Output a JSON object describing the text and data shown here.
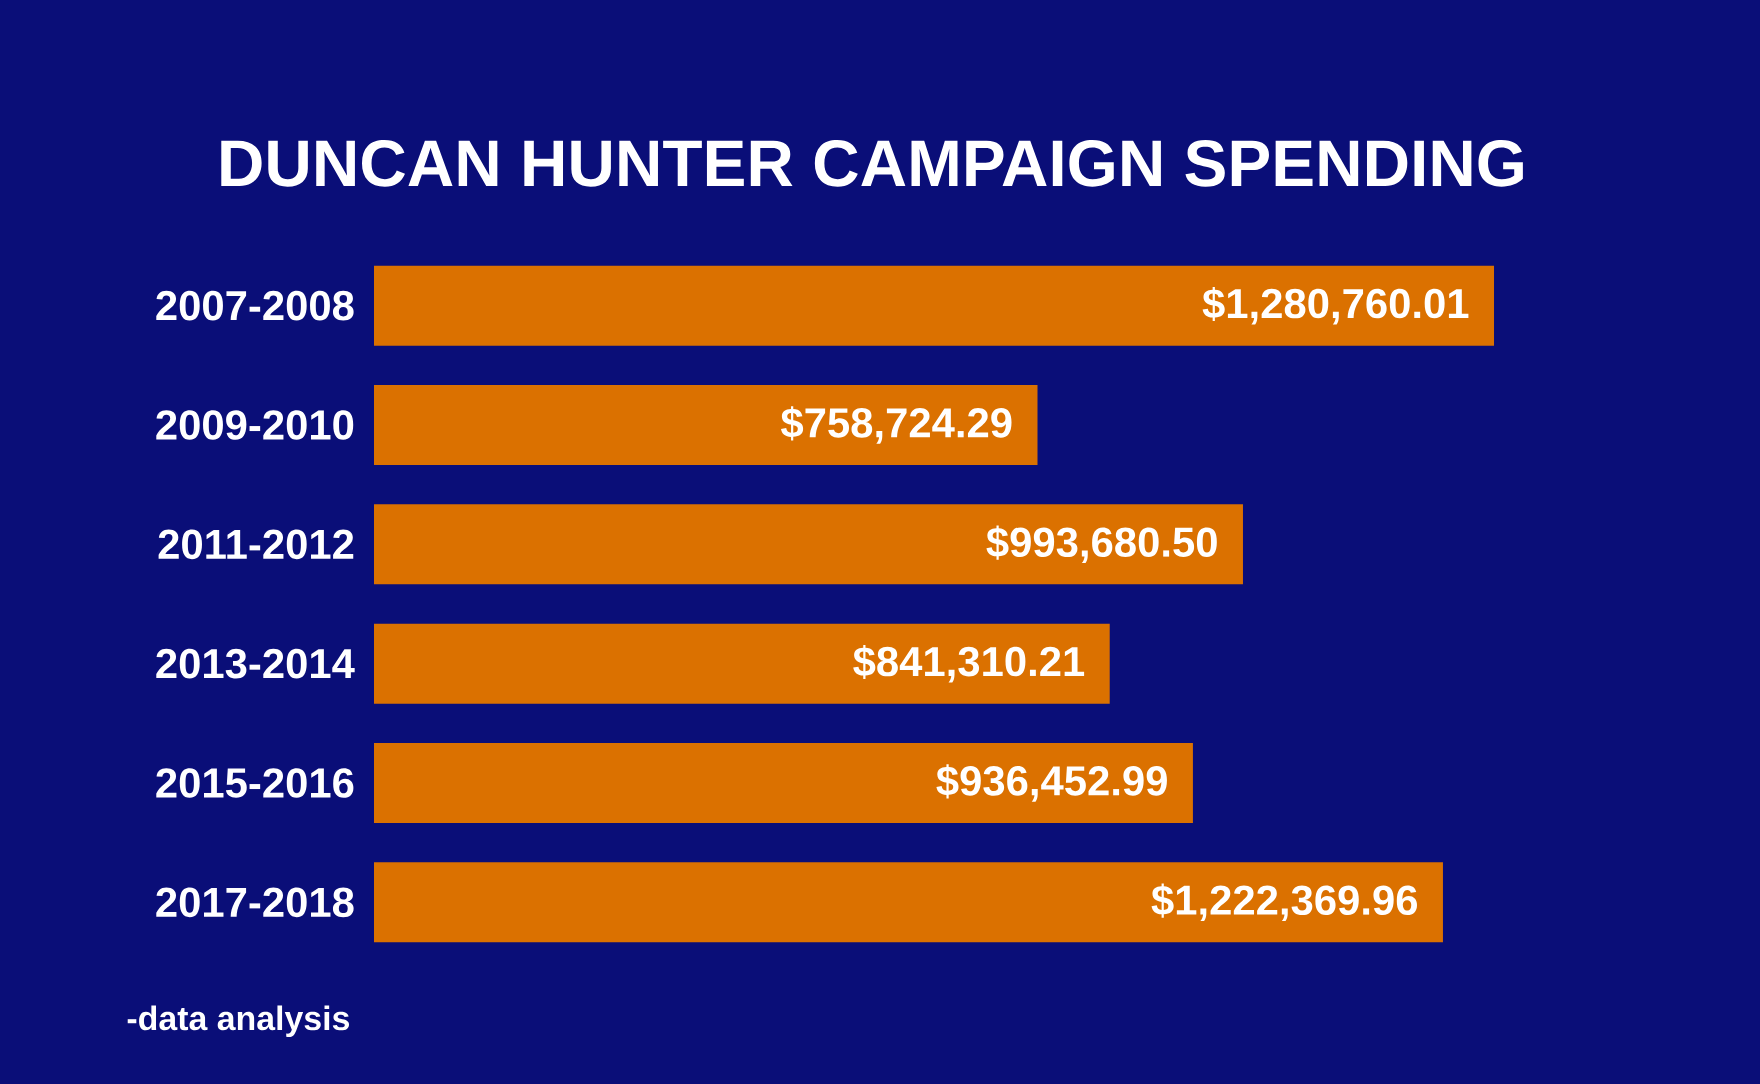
{
  "chart_data": {
    "type": "bar",
    "orientation": "horizontal",
    "title": "DUNCAN HUNTER CAMPAIGN SPENDING",
    "categories": [
      "2007-2008",
      "2009-2010",
      "2011-2012",
      "2013-2014",
      "2015-2016",
      "2017-2018"
    ],
    "values": [
      1280760.01,
      758724.29,
      993680.5,
      841310.21,
      936452.99,
      1222369.96
    ],
    "value_labels": [
      "$1,280,760.01",
      "$758,724.29",
      "$993,680.50",
      "$841,310.21",
      "$936,452.99",
      "$1,222,369.96"
    ],
    "color": "#db7100",
    "annotations": [
      "-data analysis"
    ]
  }
}
